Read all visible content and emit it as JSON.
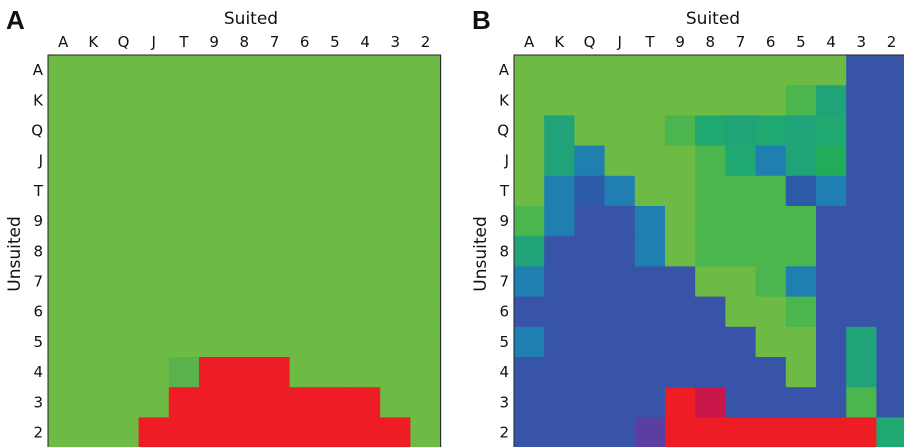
{
  "colors": {
    "green": "#6dbb45",
    "red": "#ee1c24",
    "blue": "#3854a8"
  },
  "chart_data": [
    {
      "type": "heatmap",
      "panel": "A",
      "xlabel": "Suited",
      "ylabel": "Unsuited",
      "x_ticks": [
        "A",
        "K",
        "Q",
        "J",
        "T",
        "9",
        "8",
        "7",
        "6",
        "5",
        "4",
        "3",
        "2"
      ],
      "y_ticks": [
        "A",
        "K",
        "Q",
        "J",
        "T",
        "9",
        "8",
        "7",
        "6",
        "5",
        "4",
        "3",
        "2"
      ],
      "grid": [
        "GGGGGGGGGGGGG",
        "GGGGGGGGGGGGG",
        "GGGGGGGGGGGGG",
        "GGGGGGGGGGGGG",
        "GGGGGGGGGGGGG",
        "GGGGGGGGGGGGG",
        "GGGGGGGGGGGGG",
        "GGGGGGGGGGGGG",
        "GGGGGGGGGGGGG",
        "GGGGGGGGGGGGG",
        "GGGGgRRRGGGGG",
        "GGGGRRRRRRRGG",
        "GGGRRRRRRRRRG"
      ],
      "palette": {
        "G": "#6dbb45",
        "g": "#5cb24a",
        "R": "#ee1c24"
      }
    },
    {
      "type": "heatmap",
      "panel": "B",
      "xlabel": "Suited",
      "ylabel": "Unsuited",
      "x_ticks": [
        "A",
        "K",
        "Q",
        "J",
        "T",
        "9",
        "8",
        "7",
        "6",
        "5",
        "4",
        "3",
        "2"
      ],
      "y_ticks": [
        "A",
        "K",
        "Q",
        "J",
        "T",
        "9",
        "8",
        "7",
        "6",
        "5",
        "4",
        "3",
        "2"
      ],
      "grid": [
        "GGGGGGGGGGGBB",
        "GGGGGGGGGgtBB",
        "GtGGGgTtTtTBB",
        "GtcGGGgTctsBB",
        "GcbcGGgggbcBB",
        "gcBBcGggggBBB",
        "tBBBcGggggBBB",
        "cBBBBBGGgcBBB",
        "BBBBBBBGGgBBB",
        "cBBBBBBBGGBtB",
        "BBBBBBBBBGBtB",
        "BBBBBRmBBBBgB",
        "BBBBpRRRRRRRT"
      ],
      "palette": {
        "G": "#6dbb45",
        "g": "#4bb54e",
        "T": "#1fa870",
        "t": "#21a37a",
        "s": "#20ac5a",
        "c": "#1f7fb0",
        "b": "#2b5aa8",
        "B": "#3854a8",
        "R": "#ee1c24",
        "m": "#c8164a",
        "p": "#5b3fa0"
      }
    }
  ]
}
